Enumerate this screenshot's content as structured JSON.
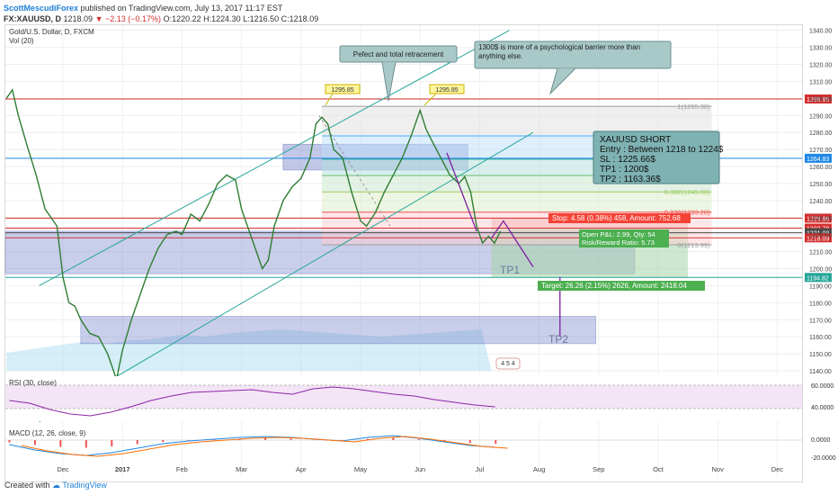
{
  "header": {
    "author": "ScottMescudiForex",
    "published": "published on TradingView.com, July 13, 2017 11:17 EST",
    "symbol": "FX:XAUUSD, D",
    "last": "1218.09",
    "change": "▼ −2.13 (−0.17%)",
    "ohlc": "O:1220.22 H:1224.30 L:1216.50 C:1218.09"
  },
  "footer": {
    "created_with": "Created with",
    "brand": "TradingView"
  },
  "chart_data": {
    "type": "line",
    "title": "Gold/U.S. Dollar, D, FXCM",
    "volume_label": "Vol (20)",
    "y_ticks": [
      1140,
      1150,
      1160,
      1170,
      1180,
      1190,
      1200,
      1210,
      1220,
      1230,
      1240,
      1250,
      1260,
      1270,
      1280,
      1290,
      1300,
      1310,
      1320,
      1330,
      1340
    ],
    "ylim": [
      1140,
      1343
    ],
    "x_ticks": [
      {
        "label": "Dec",
        "month": 0
      },
      {
        "label": "2017",
        "month": 1
      },
      {
        "label": "Feb",
        "month": 2
      },
      {
        "label": "Mar",
        "month": 3
      },
      {
        "label": "Apr",
        "month": 4
      },
      {
        "label": "May",
        "month": 5
      },
      {
        "label": "Jun",
        "month": 6
      },
      {
        "label": "Jul",
        "month": 7
      },
      {
        "label": "Aug",
        "month": 8
      },
      {
        "label": "Sep",
        "month": 9
      },
      {
        "label": "Oct",
        "month": 10
      },
      {
        "label": "Nov",
        "month": 11
      },
      {
        "label": "Dec",
        "month": 12
      }
    ],
    "series": [
      {
        "name": "XAUUSD",
        "values": [
          {
            "m": -0.95,
            "y": 1300
          },
          {
            "m": -0.85,
            "y": 1305
          },
          {
            "m": -0.75,
            "y": 1290
          },
          {
            "m": -0.6,
            "y": 1272
          },
          {
            "m": -0.45,
            "y": 1255
          },
          {
            "m": -0.3,
            "y": 1235
          },
          {
            "m": -0.2,
            "y": 1230
          },
          {
            "m": -0.1,
            "y": 1225
          },
          {
            "m": 0.0,
            "y": 1195
          },
          {
            "m": 0.1,
            "y": 1180
          },
          {
            "m": 0.2,
            "y": 1178
          },
          {
            "m": 0.3,
            "y": 1170
          },
          {
            "m": 0.45,
            "y": 1162
          },
          {
            "m": 0.6,
            "y": 1160
          },
          {
            "m": 0.75,
            "y": 1150
          },
          {
            "m": 0.9,
            "y": 1135
          },
          {
            "m": 1.0,
            "y": 1152
          },
          {
            "m": 1.15,
            "y": 1170
          },
          {
            "m": 1.3,
            "y": 1185
          },
          {
            "m": 1.45,
            "y": 1200
          },
          {
            "m": 1.6,
            "y": 1212
          },
          {
            "m": 1.75,
            "y": 1220
          },
          {
            "m": 1.9,
            "y": 1222
          },
          {
            "m": 2.0,
            "y": 1220
          },
          {
            "m": 2.15,
            "y": 1232
          },
          {
            "m": 2.3,
            "y": 1228
          },
          {
            "m": 2.45,
            "y": 1238
          },
          {
            "m": 2.6,
            "y": 1250
          },
          {
            "m": 2.75,
            "y": 1255
          },
          {
            "m": 2.9,
            "y": 1252
          },
          {
            "m": 3.0,
            "y": 1235
          },
          {
            "m": 3.1,
            "y": 1225
          },
          {
            "m": 3.2,
            "y": 1215
          },
          {
            "m": 3.35,
            "y": 1200
          },
          {
            "m": 3.45,
            "y": 1205
          },
          {
            "m": 3.55,
            "y": 1225
          },
          {
            "m": 3.7,
            "y": 1240
          },
          {
            "m": 3.85,
            "y": 1248
          },
          {
            "m": 4.0,
            "y": 1253
          },
          {
            "m": 4.15,
            "y": 1265
          },
          {
            "m": 4.25,
            "y": 1285
          },
          {
            "m": 4.35,
            "y": 1289
          },
          {
            "m": 4.45,
            "y": 1285
          },
          {
            "m": 4.55,
            "y": 1270
          },
          {
            "m": 4.7,
            "y": 1265
          },
          {
            "m": 4.85,
            "y": 1245
          },
          {
            "m": 5.0,
            "y": 1228
          },
          {
            "m": 5.1,
            "y": 1225
          },
          {
            "m": 5.25,
            "y": 1233
          },
          {
            "m": 5.4,
            "y": 1245
          },
          {
            "m": 5.55,
            "y": 1255
          },
          {
            "m": 5.7,
            "y": 1265
          },
          {
            "m": 5.85,
            "y": 1278
          },
          {
            "m": 6.0,
            "y": 1293
          },
          {
            "m": 6.1,
            "y": 1282
          },
          {
            "m": 6.2,
            "y": 1275
          },
          {
            "m": 6.35,
            "y": 1265
          },
          {
            "m": 6.5,
            "y": 1255
          },
          {
            "m": 6.65,
            "y": 1250
          },
          {
            "m": 6.75,
            "y": 1254
          },
          {
            "m": 6.85,
            "y": 1245
          },
          {
            "m": 6.95,
            "y": 1225
          },
          {
            "m": 7.05,
            "y": 1215
          },
          {
            "m": 7.15,
            "y": 1219
          },
          {
            "m": 7.25,
            "y": 1215
          },
          {
            "m": 7.35,
            "y": 1222
          }
        ]
      }
    ],
    "horizontal_levels": [
      {
        "label": "1299.65",
        "value": 1299.65,
        "color": "#d32f2f"
      },
      {
        "label": "1264.83",
        "value": 1264.83,
        "color": "#1e88e5"
      },
      {
        "label": "1229.66",
        "value": 1229.66,
        "color": "#d32f2f"
      },
      {
        "label": "1223.78",
        "value": 1223.78,
        "color": "#d32f2f"
      },
      {
        "label": "1221.08",
        "value": 1221.08,
        "color": "#4a4a4a"
      },
      {
        "label": "1218.09",
        "value": 1218.09,
        "color": "#d32f2f"
      },
      {
        "label": "1194.82",
        "value": 1194.82,
        "color": "#26a69a"
      }
    ],
    "fib_levels": [
      {
        "label": "1(1295.38)",
        "value": 1295.38,
        "color": "#9e9e9e"
      },
      {
        "label": "0.786(1277.96)",
        "value": 1277.96,
        "color": "#4dabf5"
      },
      {
        "label": "0.618(1264.29)",
        "value": 1264.29,
        "color": "#26a69a"
      },
      {
        "label": "0.5(1254.69)",
        "value": 1254.69,
        "color": "#66bb6a"
      },
      {
        "label": "0.382(1245.08)",
        "value": 1245.08,
        "color": "#9ccc65"
      },
      {
        "label": "0.236(1233.20)",
        "value": 1233.2,
        "color": "#ef5350"
      },
      {
        "label": "0(1213.99)",
        "value": 1213.99,
        "color": "#9e9e9e"
      }
    ],
    "peak_labels": [
      "1295.85",
      "1295.85"
    ],
    "notes": [
      "Pefect and total retracement",
      "1300$ is more of a psychological barrier more than anything else."
    ],
    "trade_box": {
      "title": "XAUUSD SHORT",
      "entry": "Entry : Between 1218 to 1224$",
      "sl": "SL : 1225.66$",
      "tp1": "TP1 : 1200$",
      "tp2": "TP2 : 1163.36$"
    },
    "position": {
      "stop": "Stop: 4.58 (0.38%) 458, Amount: 752.68",
      "pnl": "Open P&L: 2.99, Qty: 54",
      "rr": "Risk/Reward Ratio: 5.73",
      "target": "Target: 26.26 (2.15%) 2626, Amount: 2418.04"
    },
    "zones": [
      "TP1",
      "TP2"
    ],
    "event_marker": "4 5 4",
    "rsi": {
      "label": "RSI (30, close)",
      "ticks": [
        "60.0000",
        "40.0000"
      ]
    },
    "macd": {
      "label": "MACD (12, 26, close, 9)",
      "ticks": [
        "0.0000",
        "-20.0000"
      ]
    }
  }
}
